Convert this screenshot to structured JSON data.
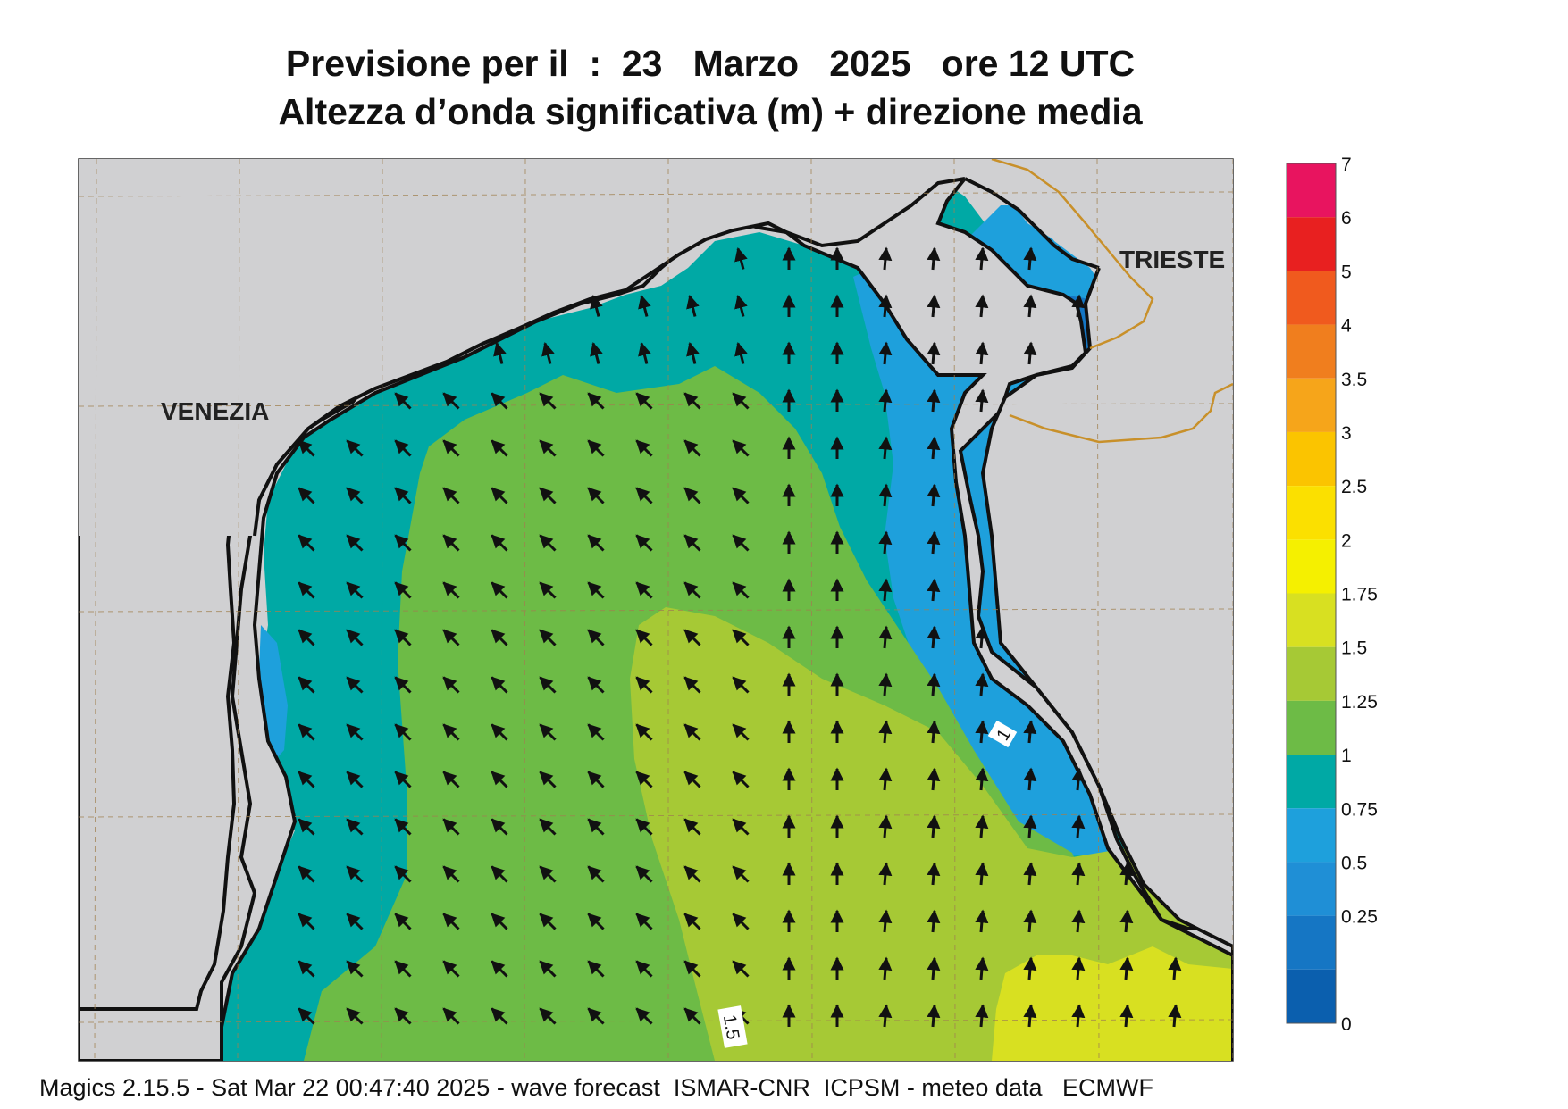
{
  "header": {
    "title_line1": "Previsione per il  :  23   Marzo   2025   ore 12 UTC",
    "title_line2": "Altezza d’onda significativa (m) + direzione media"
  },
  "labels": {
    "city_west": "VENEZIA",
    "city_east": "TRIESTE",
    "contour_label_1": "1",
    "contour_label_2": "1.5"
  },
  "legend": {
    "ticks": [
      "7",
      "6",
      "5",
      "4",
      "3.5",
      "3",
      "2.5",
      "2",
      "1.75",
      "1.5",
      "1.25",
      "1",
      "0.75",
      "0.5",
      "0.25",
      "0"
    ],
    "colors": [
      "#e8145f",
      "#e82020",
      "#f05a1e",
      "#f07e1e",
      "#f6a51a",
      "#fbc400",
      "#fbe000",
      "#f5f000",
      "#d8e021",
      "#a6c935",
      "#6dbb46",
      "#00a9a5",
      "#1ea0dc",
      "#1f8fd6",
      "#1576c4",
      "#0b5fae"
    ]
  },
  "footer": {
    "text": "Magics 2.15.5 - Sat Mar 22 00:47:40 2025 - wave forecast  ISMAR-CNR  ICPSM - meteo data   ECMWF"
  }
}
